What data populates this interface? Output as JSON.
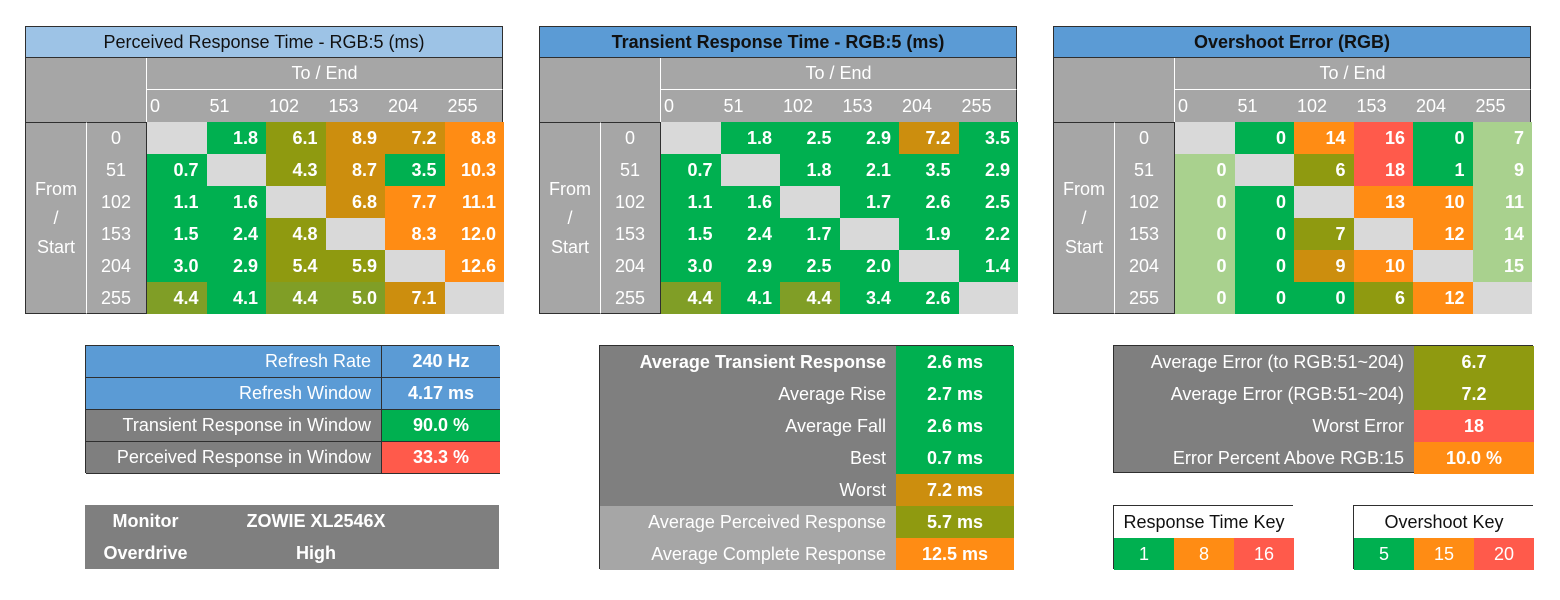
{
  "colors": {
    "green": "#00b050",
    "lightgreen": "#a9d18e",
    "olive": "#8f9a10",
    "olive2": "#809e26",
    "amber": "#cc8e0e",
    "orange": "#ff8c14",
    "red": "#ff5a4b",
    "blank": "#d9d9d9",
    "headerLight": "#9dc3e6",
    "headerBlue": "#5b9bd5",
    "gray": "#a6a6a6",
    "darkGray": "#7f7f7f"
  },
  "chart_data": [
    {
      "type": "heatmap",
      "title": "Perceived Response Time - RGB:5 (ms)",
      "xlabel": "To / End",
      "ylabel": "From / Start",
      "ylabel_lines": [
        "From",
        "/",
        "Start"
      ],
      "x": [
        "0",
        "51",
        "102",
        "153",
        "204",
        "255"
      ],
      "y": [
        "0",
        "51",
        "102",
        "153",
        "204",
        "255"
      ],
      "values": [
        [
          null,
          "1.8",
          "6.1",
          "8.9",
          "7.2",
          "8.8"
        ],
        [
          "0.7",
          null,
          "4.3",
          "8.7",
          "3.5",
          "10.3"
        ],
        [
          "1.1",
          "1.6",
          null,
          "6.8",
          "7.7",
          "11.1"
        ],
        [
          "1.5",
          "2.4",
          "4.8",
          null,
          "8.3",
          "12.0"
        ],
        [
          "3.0",
          "2.9",
          "5.4",
          "5.9",
          null,
          "12.6"
        ],
        [
          "4.4",
          "4.1",
          "4.4",
          "5.0",
          "7.1",
          null
        ]
      ],
      "cell_colors": [
        [
          "blank",
          "green",
          "olive",
          "amber",
          "amber",
          "orange"
        ],
        [
          "green",
          "blank",
          "olive",
          "amber",
          "green",
          "orange"
        ],
        [
          "green",
          "green",
          "blank",
          "amber",
          "orange",
          "orange"
        ],
        [
          "green",
          "green",
          "olive",
          "blank",
          "orange",
          "orange"
        ],
        [
          "green",
          "green",
          "olive",
          "olive",
          "blank",
          "orange"
        ],
        [
          "olive2",
          "green",
          "olive2",
          "olive2",
          "amber",
          "blank"
        ]
      ]
    },
    {
      "type": "heatmap",
      "title": "Transient Response Time - RGB:5 (ms)",
      "xlabel": "To / End",
      "ylabel": "From / Start",
      "ylabel_lines": [
        "From",
        "/",
        "Start"
      ],
      "x": [
        "0",
        "51",
        "102",
        "153",
        "204",
        "255"
      ],
      "y": [
        "0",
        "51",
        "102",
        "153",
        "204",
        "255"
      ],
      "values": [
        [
          null,
          "1.8",
          "2.5",
          "2.9",
          "7.2",
          "3.5"
        ],
        [
          "0.7",
          null,
          "1.8",
          "2.1",
          "3.5",
          "2.9"
        ],
        [
          "1.1",
          "1.6",
          null,
          "1.7",
          "2.6",
          "2.5"
        ],
        [
          "1.5",
          "2.4",
          "1.7",
          null,
          "1.9",
          "2.2"
        ],
        [
          "3.0",
          "2.9",
          "2.5",
          "2.0",
          null,
          "1.4"
        ],
        [
          "4.4",
          "4.1",
          "4.4",
          "3.4",
          "2.6",
          null
        ]
      ],
      "cell_colors": [
        [
          "blank",
          "green",
          "green",
          "green",
          "amber",
          "green"
        ],
        [
          "green",
          "blank",
          "green",
          "green",
          "green",
          "green"
        ],
        [
          "green",
          "green",
          "blank",
          "green",
          "green",
          "green"
        ],
        [
          "green",
          "green",
          "green",
          "blank",
          "green",
          "green"
        ],
        [
          "green",
          "green",
          "green",
          "green",
          "blank",
          "green"
        ],
        [
          "olive2",
          "green",
          "olive2",
          "green",
          "green",
          "blank"
        ]
      ]
    },
    {
      "type": "heatmap",
      "title": "Overshoot Error (RGB)",
      "xlabel": "To / End",
      "ylabel": "From / Start",
      "ylabel_lines": [
        "From",
        "/",
        "Start"
      ],
      "x": [
        "0",
        "51",
        "102",
        "153",
        "204",
        "255"
      ],
      "y": [
        "0",
        "51",
        "102",
        "153",
        "204",
        "255"
      ],
      "values": [
        [
          null,
          "0",
          "14",
          "16",
          "0",
          "7"
        ],
        [
          "0",
          null,
          "6",
          "18",
          "1",
          "9"
        ],
        [
          "0",
          "0",
          null,
          "13",
          "10",
          "11"
        ],
        [
          "0",
          "0",
          "7",
          null,
          "12",
          "14"
        ],
        [
          "0",
          "0",
          "9",
          "10",
          null,
          "15"
        ],
        [
          "0",
          "0",
          "0",
          "6",
          "12",
          null
        ]
      ],
      "cell_colors": [
        [
          "blank",
          "green",
          "orange",
          "red",
          "green",
          "lightgreen"
        ],
        [
          "lightgreen",
          "blank",
          "olive",
          "red",
          "green",
          "lightgreen"
        ],
        [
          "lightgreen",
          "green",
          "blank",
          "orange",
          "orange",
          "lightgreen"
        ],
        [
          "lightgreen",
          "green",
          "olive",
          "blank",
          "orange",
          "lightgreen"
        ],
        [
          "lightgreen",
          "green",
          "amber",
          "orange",
          "blank",
          "lightgreen"
        ],
        [
          "lightgreen",
          "green",
          "green",
          "olive",
          "orange",
          "blank"
        ]
      ]
    }
  ],
  "refresh_table": [
    {
      "label": "Refresh Rate",
      "value": "240 Hz",
      "label_color": "headerBlue",
      "value_color": "headerBlue"
    },
    {
      "label": "Refresh Window",
      "value": "4.17 ms",
      "label_color": "headerBlue",
      "value_color": "headerBlue"
    },
    {
      "label": "Transient Response in Window",
      "value": "90.0 %",
      "label_color": "darkGray",
      "value_color": "green"
    },
    {
      "label": "Perceived Response in Window",
      "value": "33.3 %",
      "label_color": "darkGray",
      "value_color": "red"
    }
  ],
  "monitor_table": [
    {
      "label": "Monitor",
      "value": "ZOWIE XL2546X"
    },
    {
      "label": "Overdrive",
      "value": "High"
    }
  ],
  "transient_summary": [
    {
      "label": "Average Transient Response",
      "value": "2.6 ms",
      "bold": true,
      "value_color": "green"
    },
    {
      "label": "Average Rise",
      "value": "2.7 ms",
      "bold": false,
      "value_color": "green"
    },
    {
      "label": "Average Fall",
      "value": "2.6 ms",
      "bold": false,
      "value_color": "green"
    },
    {
      "label": "Best",
      "value": "0.7 ms",
      "bold": false,
      "value_color": "green"
    },
    {
      "label": "Worst",
      "value": "7.2 ms",
      "bold": false,
      "value_color": "amber"
    },
    {
      "label": "Average Perceived Response",
      "value": "5.7 ms",
      "bold": false,
      "value_color": "olive",
      "label_color": "gray"
    },
    {
      "label": "Average Complete Response",
      "value": "12.5 ms",
      "bold": false,
      "value_color": "orange",
      "label_color": "gray"
    }
  ],
  "overshoot_summary": [
    {
      "label": "Average Error (to RGB:51~204)",
      "value": "6.7",
      "value_color": "olive"
    },
    {
      "label": "Average Error (RGB:51~204)",
      "value": "7.2",
      "value_color": "olive"
    },
    {
      "label": "Worst Error",
      "value": "18",
      "value_color": "red"
    },
    {
      "label": "Error Percent Above RGB:15",
      "value": "10.0 %",
      "value_color": "orange"
    }
  ],
  "response_key": {
    "title": "Response Time Key",
    "items": [
      {
        "value": "1",
        "color": "green"
      },
      {
        "value": "8",
        "color": "orange"
      },
      {
        "value": "16",
        "color": "red"
      }
    ]
  },
  "overshoot_key": {
    "title": "Overshoot Key",
    "items": [
      {
        "value": "5",
        "color": "green"
      },
      {
        "value": "15",
        "color": "orange"
      },
      {
        "value": "20",
        "color": "red"
      }
    ]
  }
}
